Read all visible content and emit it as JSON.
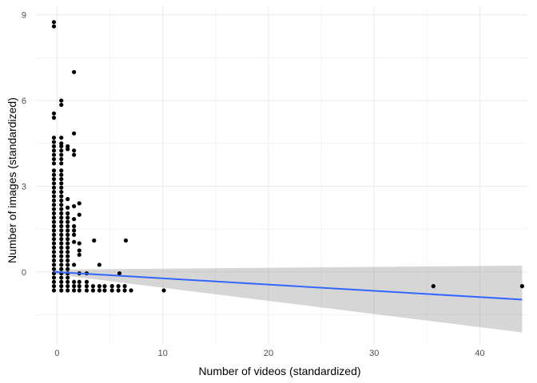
{
  "chart_data": {
    "type": "scatter",
    "title": "",
    "xlabel": "Number of videos (standardized)",
    "ylabel": "Number of images (standardized)",
    "xlim": [
      -2,
      44.5
    ],
    "ylim": [
      -2.55,
      9.3
    ],
    "x_ticks": [
      0,
      10,
      20,
      30,
      40
    ],
    "y_ticks": [
      0,
      3,
      6,
      9
    ],
    "grid": true,
    "legend": "none",
    "colors": {
      "points": "#000000",
      "smooth_line": "#3366FF",
      "ribbon": "#999999",
      "grid": "#ebebeb"
    },
    "points": [
      {
        "x": -0.3,
        "y": 8.75
      },
      {
        "x": -0.3,
        "y": 8.6
      },
      {
        "x": 1.6,
        "y": 7.0
      },
      {
        "x": 0.4,
        "y": 6.0
      },
      {
        "x": 0.4,
        "y": 5.85
      },
      {
        "x": -0.3,
        "y": 5.55
      },
      {
        "x": -0.3,
        "y": 5.4
      },
      {
        "x": 1.6,
        "y": 4.85
      },
      {
        "x": -0.3,
        "y": 4.7
      },
      {
        "x": 0.4,
        "y": 4.7
      },
      {
        "x": -0.3,
        "y": 4.55
      },
      {
        "x": 0.4,
        "y": 4.5
      },
      {
        "x": -0.3,
        "y": 4.4
      },
      {
        "x": 0.4,
        "y": 4.4
      },
      {
        "x": 1.0,
        "y": 4.4
      },
      {
        "x": -0.3,
        "y": 4.25
      },
      {
        "x": 0.4,
        "y": 4.25
      },
      {
        "x": 1.0,
        "y": 4.3
      },
      {
        "x": 1.6,
        "y": 4.25
      },
      {
        "x": 1.6,
        "y": 4.1
      },
      {
        "x": -0.3,
        "y": 4.1
      },
      {
        "x": 0.4,
        "y": 4.1
      },
      {
        "x": -0.3,
        "y": 3.95
      },
      {
        "x": 0.4,
        "y": 3.95
      },
      {
        "x": -0.3,
        "y": 3.8
      },
      {
        "x": 0.4,
        "y": 3.8
      },
      {
        "x": -0.3,
        "y": 3.55
      },
      {
        "x": 0.4,
        "y": 3.55
      },
      {
        "x": -0.3,
        "y": 3.4
      },
      {
        "x": 0.4,
        "y": 3.4
      },
      {
        "x": -0.3,
        "y": 3.25
      },
      {
        "x": 0.4,
        "y": 3.25
      },
      {
        "x": -0.3,
        "y": 3.1
      },
      {
        "x": 0.4,
        "y": 3.1
      },
      {
        "x": -0.3,
        "y": 2.95
      },
      {
        "x": 0.4,
        "y": 2.95
      },
      {
        "x": -0.3,
        "y": 2.8
      },
      {
        "x": 0.4,
        "y": 2.8
      },
      {
        "x": -0.3,
        "y": 2.65
      },
      {
        "x": 0.4,
        "y": 2.65
      },
      {
        "x": -0.3,
        "y": 2.5
      },
      {
        "x": 0.4,
        "y": 2.5
      },
      {
        "x": 1.0,
        "y": 2.55
      },
      {
        "x": -0.3,
        "y": 2.35
      },
      {
        "x": 0.4,
        "y": 2.35
      },
      {
        "x": 2.1,
        "y": 2.4
      },
      {
        "x": -0.3,
        "y": 2.2
      },
      {
        "x": 0.4,
        "y": 2.2
      },
      {
        "x": 1.0,
        "y": 2.25
      },
      {
        "x": 1.6,
        "y": 2.3
      },
      {
        "x": -0.3,
        "y": 2.05
      },
      {
        "x": 0.4,
        "y": 2.05
      },
      {
        "x": 1.0,
        "y": 2.05
      },
      {
        "x": -0.3,
        "y": 1.9
      },
      {
        "x": 0.4,
        "y": 1.9
      },
      {
        "x": 1.0,
        "y": 1.9
      },
      {
        "x": 2.1,
        "y": 2.0
      },
      {
        "x": -0.3,
        "y": 1.75
      },
      {
        "x": 0.4,
        "y": 1.75
      },
      {
        "x": 1.0,
        "y": 1.75
      },
      {
        "x": 1.6,
        "y": 1.85
      },
      {
        "x": -0.3,
        "y": 1.6
      },
      {
        "x": 0.4,
        "y": 1.6
      },
      {
        "x": 1.0,
        "y": 1.6
      },
      {
        "x": 1.6,
        "y": 1.6
      },
      {
        "x": -0.3,
        "y": 1.45
      },
      {
        "x": 0.4,
        "y": 1.45
      },
      {
        "x": 1.0,
        "y": 1.45
      },
      {
        "x": 1.6,
        "y": 1.45
      },
      {
        "x": -0.3,
        "y": 1.3
      },
      {
        "x": 0.4,
        "y": 1.3
      },
      {
        "x": 1.0,
        "y": 1.3
      },
      {
        "x": 1.6,
        "y": 1.3
      },
      {
        "x": -0.3,
        "y": 1.15
      },
      {
        "x": 0.4,
        "y": 1.15
      },
      {
        "x": 1.0,
        "y": 1.15
      },
      {
        "x": -0.3,
        "y": 1.0
      },
      {
        "x": 0.4,
        "y": 1.0
      },
      {
        "x": 1.0,
        "y": 1.0
      },
      {
        "x": 1.6,
        "y": 1.05
      },
      {
        "x": 2.1,
        "y": 1.0
      },
      {
        "x": 3.5,
        "y": 1.1
      },
      {
        "x": 6.5,
        "y": 1.1
      },
      {
        "x": -0.3,
        "y": 0.85
      },
      {
        "x": 0.4,
        "y": 0.85
      },
      {
        "x": 1.0,
        "y": 0.85
      },
      {
        "x": 2.1,
        "y": 0.75
      },
      {
        "x": -0.3,
        "y": 0.7
      },
      {
        "x": 0.4,
        "y": 0.7
      },
      {
        "x": 1.0,
        "y": 0.7
      },
      {
        "x": 2.1,
        "y": 0.6
      },
      {
        "x": -0.3,
        "y": 0.55
      },
      {
        "x": 0.4,
        "y": 0.55
      },
      {
        "x": 1.0,
        "y": 0.55
      },
      {
        "x": -0.3,
        "y": 0.4
      },
      {
        "x": 0.4,
        "y": 0.4
      },
      {
        "x": 1.0,
        "y": 0.4
      },
      {
        "x": -0.3,
        "y": 0.25
      },
      {
        "x": 0.4,
        "y": 0.25
      },
      {
        "x": 1.0,
        "y": 0.25
      },
      {
        "x": 1.6,
        "y": 0.25
      },
      {
        "x": 4.0,
        "y": 0.25
      },
      {
        "x": -0.3,
        "y": 0.1
      },
      {
        "x": 0.4,
        "y": 0.1
      },
      {
        "x": 1.0,
        "y": 0.1
      },
      {
        "x": -0.3,
        "y": -0.05
      },
      {
        "x": 0.4,
        "y": -0.05
      },
      {
        "x": 1.0,
        "y": -0.05
      },
      {
        "x": 2.1,
        "y": -0.05
      },
      {
        "x": 2.8,
        "y": -0.05
      },
      {
        "x": 5.9,
        "y": -0.05
      },
      {
        "x": -0.3,
        "y": -0.2
      },
      {
        "x": 0.4,
        "y": -0.2
      },
      {
        "x": 1.0,
        "y": -0.2
      },
      {
        "x": -0.3,
        "y": -0.35
      },
      {
        "x": 0.4,
        "y": -0.35
      },
      {
        "x": 1.0,
        "y": -0.35
      },
      {
        "x": 1.6,
        "y": -0.35
      },
      {
        "x": 2.1,
        "y": -0.35
      },
      {
        "x": 2.8,
        "y": -0.35
      },
      {
        "x": -0.3,
        "y": -0.5
      },
      {
        "x": 0.4,
        "y": -0.5
      },
      {
        "x": 1.0,
        "y": -0.5
      },
      {
        "x": 1.6,
        "y": -0.5
      },
      {
        "x": 2.1,
        "y": -0.5
      },
      {
        "x": 2.8,
        "y": -0.5
      },
      {
        "x": 3.4,
        "y": -0.5
      },
      {
        "x": 4.0,
        "y": -0.5
      },
      {
        "x": 4.5,
        "y": -0.5
      },
      {
        "x": 5.2,
        "y": -0.5
      },
      {
        "x": 5.8,
        "y": -0.5
      },
      {
        "x": 6.4,
        "y": -0.5
      },
      {
        "x": 35.6,
        "y": -0.5
      },
      {
        "x": 44.0,
        "y": -0.5
      },
      {
        "x": -0.3,
        "y": -0.65
      },
      {
        "x": 0.4,
        "y": -0.65
      },
      {
        "x": 1.0,
        "y": -0.65
      },
      {
        "x": 1.6,
        "y": -0.65
      },
      {
        "x": 2.1,
        "y": -0.65
      },
      {
        "x": 2.8,
        "y": -0.65
      },
      {
        "x": 3.4,
        "y": -0.65
      },
      {
        "x": 4.0,
        "y": -0.65
      },
      {
        "x": 4.5,
        "y": -0.65
      },
      {
        "x": 5.2,
        "y": -0.65
      },
      {
        "x": 5.8,
        "y": -0.65
      },
      {
        "x": 6.4,
        "y": -0.65
      },
      {
        "x": 7.0,
        "y": -0.65
      },
      {
        "x": 10.1,
        "y": -0.65
      }
    ],
    "smooth": {
      "method": "lm",
      "x_range": [
        -0.3,
        44.0
      ],
      "fit_y": [
        0.0,
        -0.97
      ],
      "ci_lower": [
        -0.08,
        -2.12
      ],
      "ci_upper": [
        0.08,
        0.22
      ]
    }
  }
}
